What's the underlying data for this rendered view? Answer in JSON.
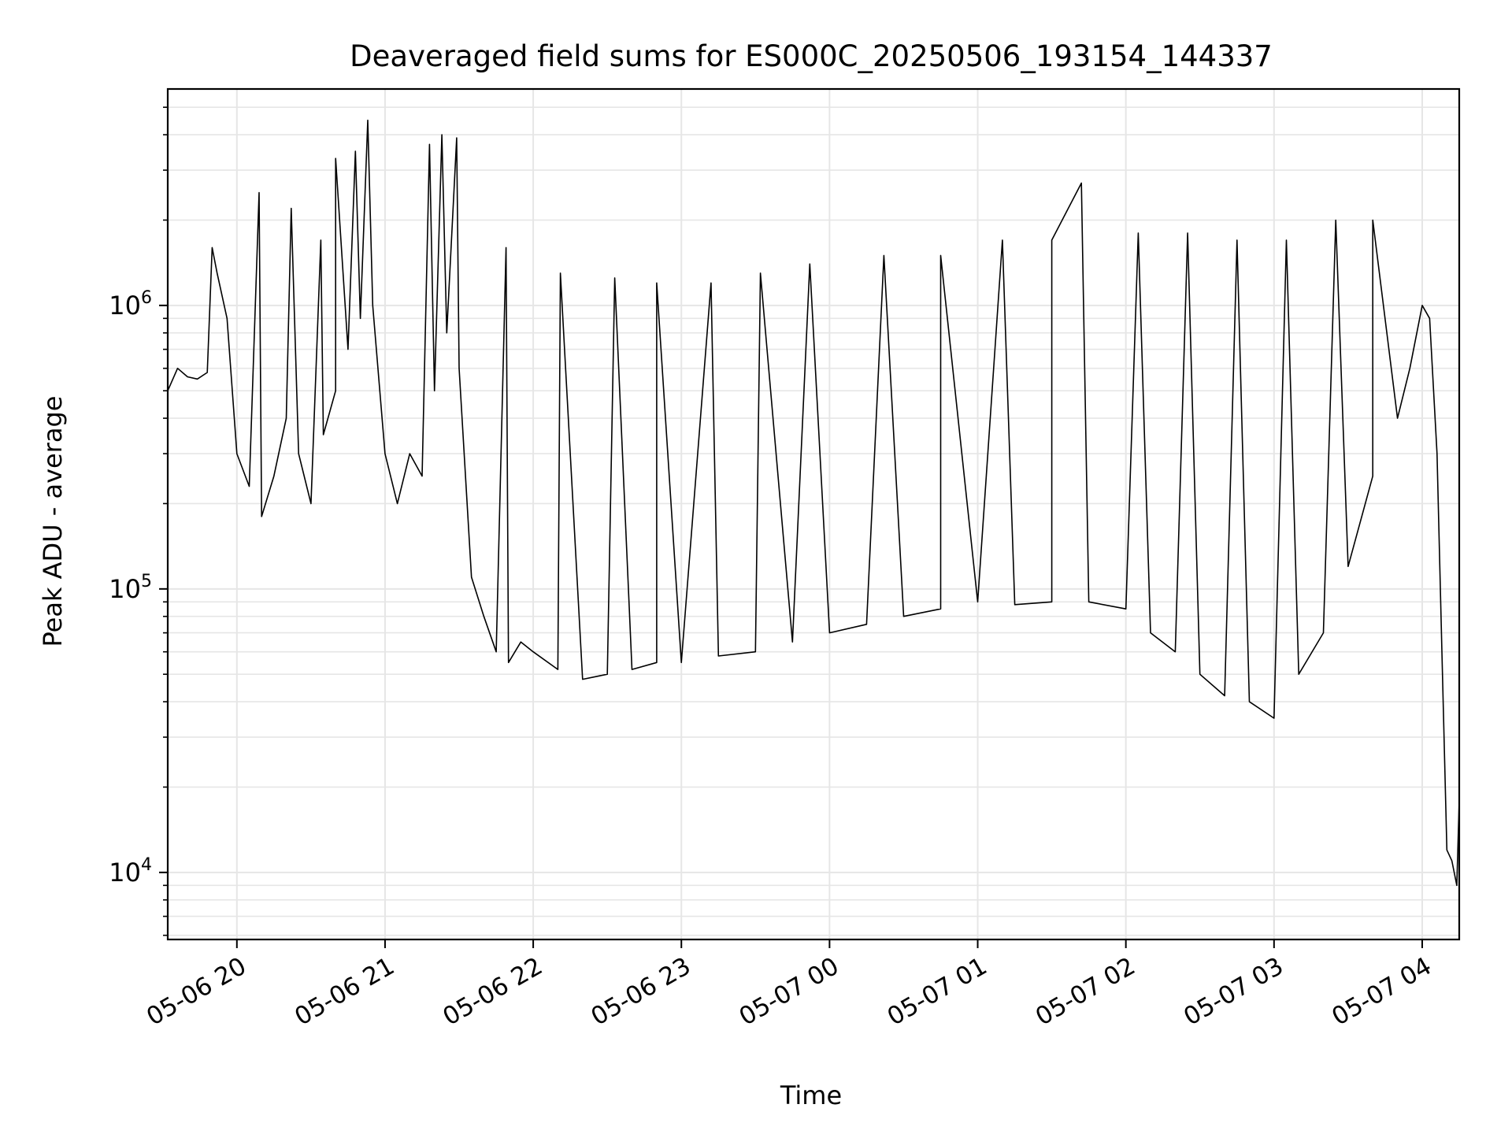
{
  "chart_data": {
    "type": "line",
    "title": "Deaveraged field sums for ES000C_20250506_193154_144337",
    "xlabel": "Time",
    "ylabel": "Peak ADU - average",
    "y_scale": "log",
    "ylim": [
      5800,
      5800000
    ],
    "xlim": [
      "2025-05-06 19:32",
      "2025-05-07 04:15"
    ],
    "grid": true,
    "line_color": "#000000",
    "grid_color": "#e6e6e6",
    "x_ticks": [
      {
        "value": "2025-05-06 20:00",
        "label": "05-06 20"
      },
      {
        "value": "2025-05-06 21:00",
        "label": "05-06 21"
      },
      {
        "value": "2025-05-06 22:00",
        "label": "05-06 22"
      },
      {
        "value": "2025-05-06 23:00",
        "label": "05-06 23"
      },
      {
        "value": "2025-05-07 00:00",
        "label": "05-07 00"
      },
      {
        "value": "2025-05-07 01:00",
        "label": "05-07 01"
      },
      {
        "value": "2025-05-07 02:00",
        "label": "05-07 02"
      },
      {
        "value": "2025-05-07 03:00",
        "label": "05-07 03"
      },
      {
        "value": "2025-05-07 04:00",
        "label": "05-07 04"
      }
    ],
    "y_ticks": [
      {
        "value": 10000,
        "base": "10",
        "exp": "4"
      },
      {
        "value": 100000,
        "base": "10",
        "exp": "5"
      },
      {
        "value": 1000000,
        "base": "10",
        "exp": "6"
      }
    ],
    "series": [
      {
        "x": [
          "2025-05-06 19:32",
          "2025-05-06 19:36",
          "2025-05-06 19:40",
          "2025-05-06 19:44",
          "2025-05-06 19:48",
          "2025-05-06 19:52",
          "2025-05-06 19:56",
          "2025-05-06 20:00",
          "2025-05-06 20:05",
          "2025-05-06 20:10",
          "2025-05-06 20:15",
          "2025-05-06 20:20",
          "2025-05-06 20:25",
          "2025-05-06 20:30",
          "2025-05-06 20:35",
          "2025-05-06 20:40",
          "2025-05-06 20:45",
          "2025-05-06 20:50",
          "2025-05-06 20:55",
          "2025-05-06 21:00",
          "2025-05-06 21:05",
          "2025-05-06 21:10",
          "2025-05-06 21:15",
          "2025-05-06 21:20",
          "2025-05-06 21:25",
          "2025-05-06 21:30",
          "2025-05-06 21:35",
          "2025-05-06 21:40",
          "2025-05-06 21:45",
          "2025-05-06 21:50",
          "2025-05-06 21:55",
          "2025-05-06 22:00",
          "2025-05-06 22:10",
          "2025-05-06 22:20",
          "2025-05-06 22:30",
          "2025-05-06 22:40",
          "2025-05-06 22:50",
          "2025-05-06 23:00",
          "2025-05-06 23:15",
          "2025-05-06 23:30",
          "2025-05-06 23:45",
          "2025-05-07 00:00",
          "2025-05-07 00:15",
          "2025-05-07 00:30",
          "2025-05-07 00:45",
          "2025-05-07 01:00",
          "2025-05-07 01:15",
          "2025-05-07 01:30",
          "2025-05-07 01:45",
          "2025-05-07 02:00",
          "2025-05-07 02:10",
          "2025-05-07 02:20",
          "2025-05-07 02:30",
          "2025-05-07 02:40",
          "2025-05-07 02:50",
          "2025-05-07 03:00",
          "2025-05-07 03:10",
          "2025-05-07 03:20",
          "2025-05-07 03:30",
          "2025-05-07 03:40",
          "2025-05-07 03:50",
          "2025-05-07 03:55",
          "2025-05-07 04:00",
          "2025-05-07 04:03",
          "2025-05-07 04:06",
          "2025-05-07 04:08",
          "2025-05-07 04:10",
          "2025-05-07 04:12",
          "2025-05-07 04:14",
          "2025-05-07 04:15"
        ],
        "y": [
          500000,
          600000,
          560000,
          550000,
          580000,
          1300000,
          900000,
          300000,
          230000,
          180000,
          250000,
          400000,
          300000,
          200000,
          350000,
          500000,
          700000,
          900000,
          1000000,
          300000,
          200000,
          300000,
          250000,
          500000,
          800000,
          600000,
          110000,
          80000,
          60000,
          55000,
          65000,
          60000,
          52000,
          48000,
          50000,
          52000,
          55000,
          55000,
          58000,
          60000,
          65000,
          70000,
          75000,
          80000,
          85000,
          90000,
          88000,
          90000,
          90000,
          85000,
          70000,
          60000,
          50000,
          42000,
          40000,
          35000,
          50000,
          70000,
          120000,
          250000,
          400000,
          600000,
          1000000,
          900000,
          300000,
          60000,
          12000,
          11000,
          9000,
          18000
        ],
        "spikes": [
          {
            "x": "2025-05-06 19:50",
            "y": 1600000
          },
          {
            "x": "2025-05-06 20:09",
            "y": 2500000
          },
          {
            "x": "2025-05-06 20:22",
            "y": 2200000
          },
          {
            "x": "2025-05-06 20:34",
            "y": 1700000
          },
          {
            "x": "2025-05-06 20:40",
            "y": 3300000
          },
          {
            "x": "2025-05-06 20:48",
            "y": 3500000
          },
          {
            "x": "2025-05-06 20:53",
            "y": 4500000
          },
          {
            "x": "2025-05-06 21:18",
            "y": 3700000
          },
          {
            "x": "2025-05-06 21:23",
            "y": 4000000
          },
          {
            "x": "2025-05-06 21:29",
            "y": 3900000
          },
          {
            "x": "2025-05-06 21:49",
            "y": 1600000
          },
          {
            "x": "2025-05-06 22:11",
            "y": 1300000
          },
          {
            "x": "2025-05-06 22:33",
            "y": 1250000
          },
          {
            "x": "2025-05-06 22:50",
            "y": 1200000
          },
          {
            "x": "2025-05-06 23:12",
            "y": 1200000
          },
          {
            "x": "2025-05-06 23:32",
            "y": 1300000
          },
          {
            "x": "2025-05-06 23:52",
            "y": 1400000
          },
          {
            "x": "2025-05-07 00:22",
            "y": 1500000
          },
          {
            "x": "2025-05-07 00:45",
            "y": 1500000
          },
          {
            "x": "2025-05-07 01:10",
            "y": 1700000
          },
          {
            "x": "2025-05-07 01:30",
            "y": 1700000
          },
          {
            "x": "2025-05-07 01:42",
            "y": 2700000
          },
          {
            "x": "2025-05-07 02:05",
            "y": 1800000
          },
          {
            "x": "2025-05-07 02:25",
            "y": 1800000
          },
          {
            "x": "2025-05-07 02:45",
            "y": 1700000
          },
          {
            "x": "2025-05-07 03:05",
            "y": 1700000
          },
          {
            "x": "2025-05-07 03:25",
            "y": 2000000
          },
          {
            "x": "2025-05-07 03:40",
            "y": 2000000
          }
        ]
      }
    ]
  }
}
